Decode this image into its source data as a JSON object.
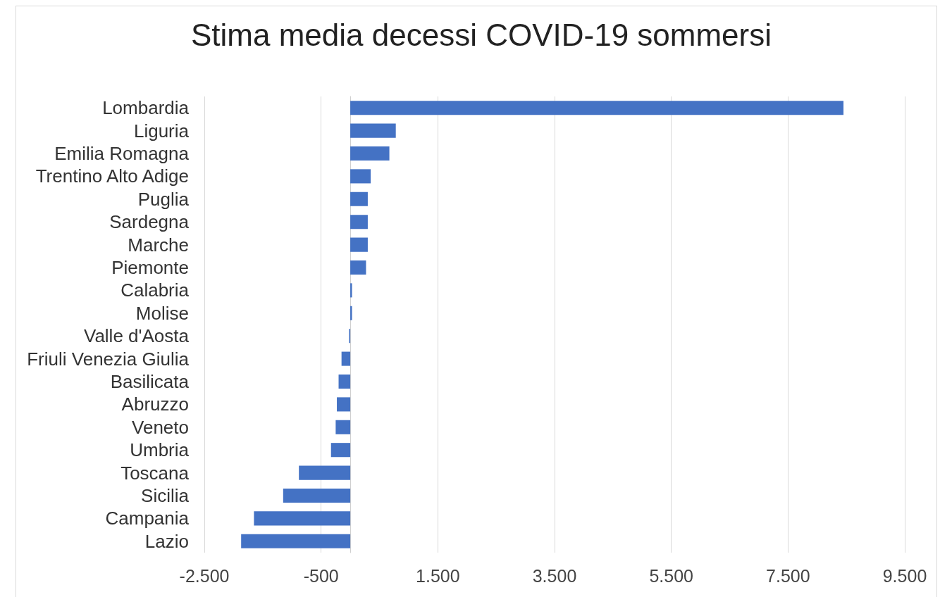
{
  "chart_data": {
    "type": "bar",
    "orientation": "horizontal",
    "title": "Stima media decessi COVID-19 sommersi",
    "categories": [
      "Lombardia",
      "Liguria",
      "Emilia Romagna",
      "Trentino Alto Adige",
      "Puglia",
      "Sardegna",
      "Marche",
      "Piemonte",
      "Calabria",
      "Molise",
      "Valle d'Aosta",
      "Friuli Venezia Giulia",
      "Basilicata",
      "Abruzzo",
      "Veneto",
      "Umbria",
      "Toscana",
      "Sicilia",
      "Campania",
      "Lazio"
    ],
    "values": [
      8450,
      780,
      670,
      350,
      300,
      300,
      300,
      270,
      30,
      30,
      -20,
      -150,
      -200,
      -230,
      -250,
      -330,
      -880,
      -1150,
      -1650,
      -1870
    ],
    "color": "#4472c4",
    "xlim": [
      -2500,
      9500
    ],
    "xticks": [
      {
        "value": -2500,
        "label": "-2.500"
      },
      {
        "value": -500,
        "label": "-500"
      },
      {
        "value": 1500,
        "label": "1.500"
      },
      {
        "value": 3500,
        "label": "3.500"
      },
      {
        "value": 5500,
        "label": "5.500"
      },
      {
        "value": 7500,
        "label": "7.500"
      },
      {
        "value": 9500,
        "label": "9.500"
      }
    ],
    "grid": "x"
  }
}
